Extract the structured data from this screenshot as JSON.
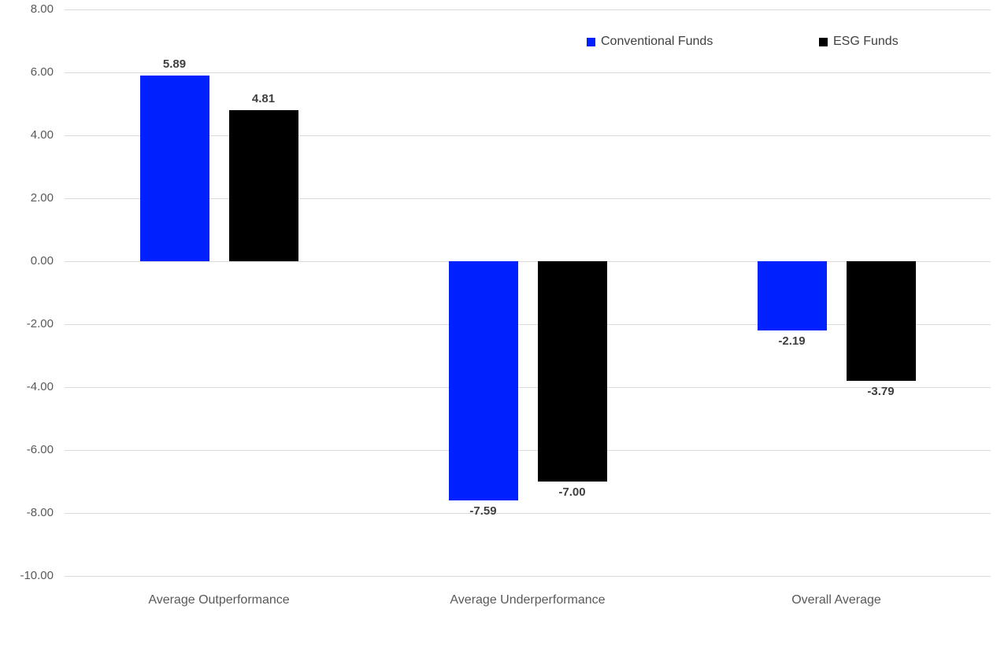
{
  "chart_data": {
    "type": "bar",
    "title": "",
    "xlabel": "",
    "ylabel": "",
    "categories": [
      "Average Outperformance",
      "Average Underperformance",
      "Overall Average"
    ],
    "series": [
      {
        "name": "Conventional Funds",
        "color": "#0020fe",
        "values": [
          5.89,
          -7.59,
          -2.19
        ]
      },
      {
        "name": "ESG Funds",
        "color": "#000000",
        "values": [
          4.81,
          -7.0,
          -3.79
        ]
      }
    ],
    "ylim": [
      -10,
      8
    ],
    "ytick_step": 2,
    "ytick_labels": [
      "8.00",
      "6.00",
      "4.00",
      "2.00",
      "0.00",
      "-2.00",
      "-4.00",
      "-6.00",
      "-8.00",
      "-10.00"
    ],
    "grid": true,
    "legend_position": "top-right",
    "value_label_decimals": 2,
    "colors": {
      "gridline": "#d9d9d9",
      "tick_label": "#595959",
      "category_label": "#595959",
      "value_label": "#3f3f3f",
      "legend_text": "#404040",
      "background": "#ffffff"
    }
  }
}
